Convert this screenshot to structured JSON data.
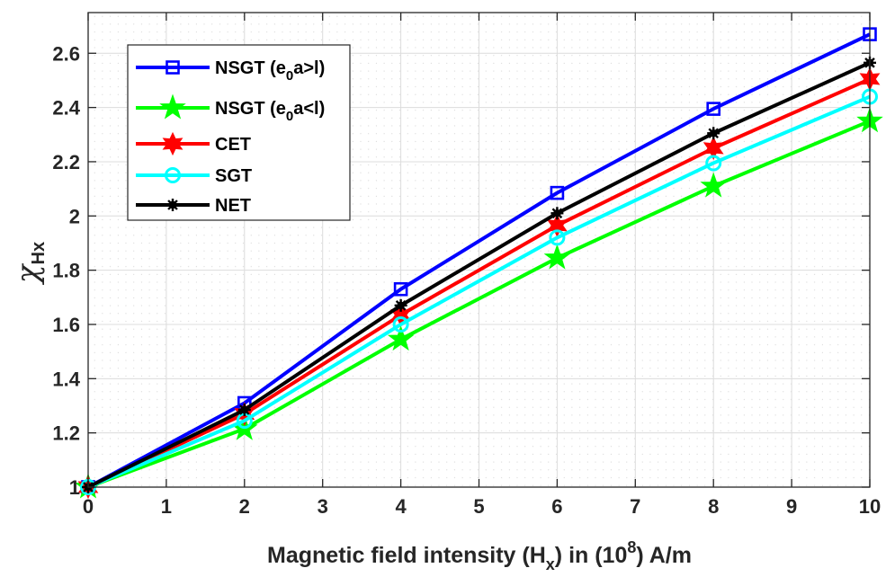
{
  "chart_data": {
    "type": "line",
    "title": "",
    "xlabel": "Magnetic field intensity (H_x) in (10^8) A/m",
    "xlabel_parts": {
      "pre": "Magnetic field intensity (H",
      "sub": "x",
      "mid": ") in (10",
      "sup": "8",
      "post": ") A/m"
    },
    "ylabel": "χHx",
    "ylabel_parts": {
      "symbol": "χ",
      "sub": "Hx"
    },
    "xlim": [
      0,
      10
    ],
    "ylim": [
      1,
      2.75
    ],
    "xticks": [
      0,
      1,
      2,
      3,
      4,
      5,
      6,
      7,
      8,
      9,
      10
    ],
    "yticks": [
      1,
      1.2,
      1.4,
      1.6,
      1.8,
      2,
      2.2,
      2.4,
      2.6
    ],
    "ytick_labels": [
      "1",
      "1.2",
      "1.4",
      "1.6",
      "1.8",
      "2",
      "2.2",
      "2.4",
      "2.6"
    ],
    "grid": true,
    "minor_grid": true,
    "legend_position": "top-left",
    "x": [
      0,
      2,
      4,
      6,
      8,
      10
    ],
    "series": [
      {
        "name": "NSGT (e0a>l)",
        "name_parts": {
          "pre": "NSGT (e",
          "sub": "0",
          "post": "a>l)"
        },
        "color": "#0000ff",
        "marker": "square",
        "values": [
          1.0,
          1.31,
          1.73,
          2.085,
          2.395,
          2.67
        ]
      },
      {
        "name": "NSGT (e0a<l)",
        "name_parts": {
          "pre": "NSGT (e",
          "sub": "0",
          "post": "a<l)"
        },
        "color": "#00ff00",
        "marker": "pentagram",
        "values": [
          1.0,
          1.215,
          1.545,
          1.845,
          2.11,
          2.35
        ]
      },
      {
        "name": "CET",
        "name_parts": {
          "pre": "CET",
          "sub": "",
          "post": ""
        },
        "color": "#ff0000",
        "marker": "hexagram",
        "values": [
          1.0,
          1.27,
          1.635,
          1.965,
          2.25,
          2.505
        ]
      },
      {
        "name": "SGT",
        "name_parts": {
          "pre": "SGT",
          "sub": "",
          "post": ""
        },
        "color": "#00ffff",
        "marker": "circle",
        "values": [
          1.0,
          1.245,
          1.6,
          1.92,
          2.195,
          2.44
        ]
      },
      {
        "name": "NET",
        "name_parts": {
          "pre": "NET",
          "sub": "",
          "post": ""
        },
        "color": "#000000",
        "marker": "asterisk-dot",
        "values": [
          1.0,
          1.285,
          1.67,
          2.01,
          2.305,
          2.565
        ]
      }
    ]
  }
}
